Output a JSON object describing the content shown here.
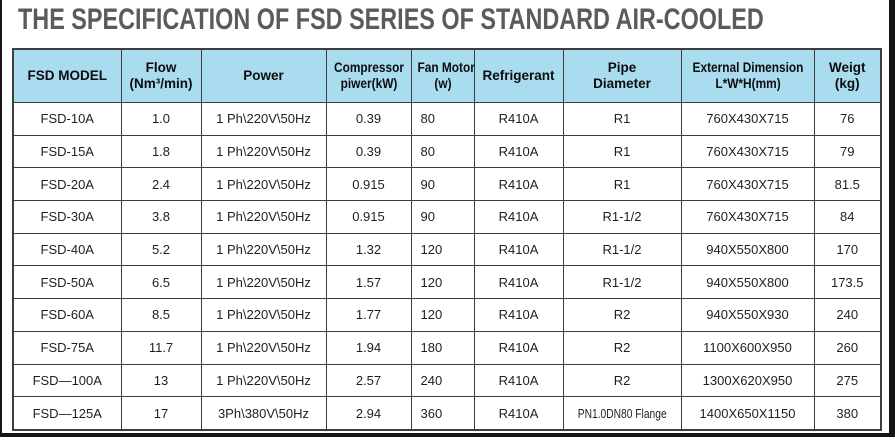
{
  "title": "THE SPECIFICATION OF FSD SERIES OF STANDARD AIR-COOLED",
  "colors": {
    "header_bg": "#aadcf0",
    "border": "#3d3d3d",
    "title_text": "#5a5b5d",
    "frame": "#151515"
  },
  "table": {
    "headers": [
      {
        "line1": "FSD MODEL",
        "line2": ""
      },
      {
        "line1": "Flow",
        "line2": "(Nm³/min)"
      },
      {
        "line1": "Power",
        "line2": ""
      },
      {
        "line1": "Compressor",
        "line2": "piwer(kW)"
      },
      {
        "line1": "Fan Motor",
        "line2": "(w)"
      },
      {
        "line1": "Refrigerant",
        "line2": ""
      },
      {
        "line1": "Pipe",
        "line2": "Diameter"
      },
      {
        "line1": "External Dimension",
        "line2": "L*W*H(mm)"
      },
      {
        "line1": "Weigt",
        "line2": "(kg)"
      }
    ],
    "rows": [
      [
        "FSD-10A",
        "1.0",
        "1 Ph\\220V\\50Hz",
        "0.39",
        "80",
        "R410A",
        "R1",
        "760X430X715",
        "76"
      ],
      [
        "FSD-15A",
        "1.8",
        "1 Ph\\220V\\50Hz",
        "0.39",
        "80",
        "R410A",
        "R1",
        "760X430X715",
        "79"
      ],
      [
        "FSD-20A",
        "2.4",
        "1 Ph\\220V\\50Hz",
        "0.915",
        "90",
        "R410A",
        "R1",
        "760X430X715",
        "81.5"
      ],
      [
        "FSD-30A",
        "3.8",
        "1 Ph\\220V\\50Hz",
        "0.915",
        "90",
        "R410A",
        "R1-1/2",
        "760X430X715",
        "84"
      ],
      [
        "FSD-40A",
        "5.2",
        "1 Ph\\220V\\50Hz",
        "1.32",
        "120",
        "R410A",
        "R1-1/2",
        "940X550X800",
        "170"
      ],
      [
        "FSD-50A",
        "6.5",
        "1 Ph\\220V\\50Hz",
        "1.57",
        "120",
        "R410A",
        "R1-1/2",
        "940X550X800",
        "173.5"
      ],
      [
        "FSD-60A",
        "8.5",
        "1 Ph\\220V\\50Hz",
        "1.77",
        "120",
        "R410A",
        "R2",
        "940X550X930",
        "240"
      ],
      [
        "FSD-75A",
        "11.7",
        "1 Ph\\220V\\50Hz",
        "1.94",
        "180",
        "R410A",
        "R2",
        "1100X600X950",
        "260"
      ],
      [
        "FSD—100A",
        "13",
        "1 Ph\\220V\\50Hz",
        "2.57",
        "240",
        "R410A",
        "R2",
        "1300X620X950",
        "275"
      ],
      [
        "FSD—125A",
        "17",
        "3Ph\\380V\\50Hz",
        "2.94",
        "360",
        "R410A",
        "PN1.0DN80 Flange",
        "1400X650X1150",
        "380"
      ]
    ]
  }
}
